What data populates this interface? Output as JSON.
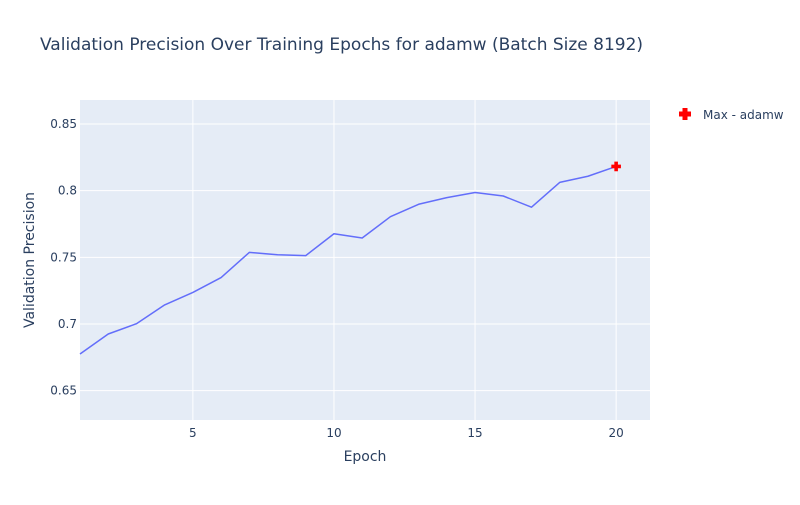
{
  "chart_data": {
    "type": "line",
    "title": "Validation Precision Over Training Epochs for adamw (Batch Size 8192)",
    "xlabel": "Epoch",
    "ylabel": "Validation Precision",
    "xlim": [
      1,
      21.2
    ],
    "ylim": [
      0.628,
      0.868
    ],
    "x_ticks": [
      5,
      10,
      15,
      20
    ],
    "x_tick_labels": [
      "5",
      "10",
      "15",
      "20"
    ],
    "y_ticks": [
      0.65,
      0.7,
      0.75,
      0.8,
      0.85
    ],
    "y_tick_labels": [
      "0.65",
      "0.7",
      "0.75",
      "0.8",
      "0.85"
    ],
    "grid": true,
    "legend_position": "top-right-outside",
    "series": [
      {
        "name": "",
        "color": "#636efa",
        "x": [
          1,
          2,
          3,
          4,
          5,
          6,
          7,
          8,
          9,
          10,
          11,
          12,
          13,
          14,
          15,
          16,
          17,
          18,
          19,
          20
        ],
        "y": [
          0.6775,
          0.6925,
          0.7002,
          0.7143,
          0.7237,
          0.7348,
          0.7537,
          0.7519,
          0.7513,
          0.7677,
          0.7645,
          0.7805,
          0.7898,
          0.7948,
          0.7986,
          0.796,
          0.7876,
          0.8062,
          0.8108,
          0.8182
        ]
      }
    ],
    "markers": [
      {
        "name": "Max - adamw",
        "color": "#ff0000",
        "symbol": "cross",
        "x": 20,
        "y": 0.8182
      }
    ]
  }
}
